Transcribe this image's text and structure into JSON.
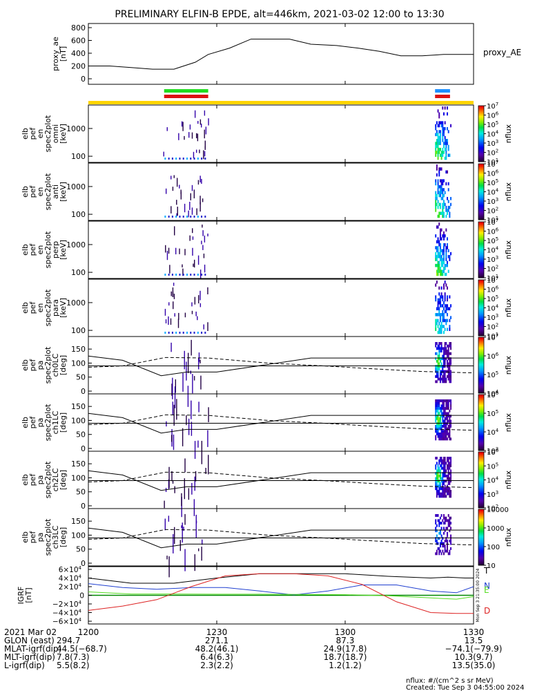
{
  "title": "PRELIMINARY ELFIN-B EPDE, alt=446km, 2021-03-02 12:00 to 13:30",
  "colors": {
    "status_yellow": "#ffd400",
    "green": "#22dd22",
    "red": "#dd1111",
    "blue": "#1e90ff",
    "igrf_T": "#000000",
    "igrf_N": "#1f3fd0",
    "igrf_E": "#55dd22",
    "igrf_D": "#dd2222"
  },
  "chart_data": [
    {
      "type": "line",
      "name": "proxy_ae",
      "ylabel_lines": [
        "proxy_ae",
        "[nT]"
      ],
      "legend": "proxy_AE",
      "ylim": [
        0,
        800
      ],
      "yticks": [
        "0",
        "200",
        "400",
        "600",
        "800"
      ],
      "ytick_values": [
        0,
        200,
        400,
        600,
        800
      ],
      "x": [
        0,
        5,
        10,
        15,
        20,
        25,
        28,
        33,
        38,
        43,
        47,
        52,
        58,
        63,
        68,
        73,
        78,
        83,
        90
      ],
      "values": [
        200,
        200,
        175,
        150,
        150,
        260,
        380,
        480,
        620,
        620,
        620,
        540,
        520,
        480,
        430,
        360,
        360,
        380,
        380
      ]
    },
    {
      "type": "status_bars",
      "bars": [
        {
          "color": "green",
          "x0": 17.7,
          "x1": 28.0,
          "row": 0
        },
        {
          "color": "red",
          "x0": 17.7,
          "x1": 28.0,
          "row": 1
        },
        {
          "color": "blue",
          "x0": 81.0,
          "x1": 84.5,
          "row": 0
        },
        {
          "color": "red",
          "x0": 81.0,
          "x1": 84.5,
          "row": 1
        }
      ]
    },
    {
      "type": "heatmap",
      "ylabel_lines": [
        "elb",
        "pef",
        "en",
        "spec2plot",
        "omni",
        "[keV]"
      ],
      "yticks": [
        "100",
        "1000"
      ],
      "yscale": "log",
      "ylim": [
        60,
        7000
      ],
      "colorbar": {
        "label": "nflux",
        "ticks": [
          "10",
          "10",
          "10",
          "10",
          "10",
          "10",
          "10"
        ],
        "exponents": [
          "1",
          "2",
          "3",
          "4",
          "5",
          "6",
          "7"
        ]
      }
    },
    {
      "type": "heatmap",
      "ylabel_lines": [
        "elb",
        "pef",
        "en",
        "spec2plot",
        "anti",
        "[keV]"
      ],
      "yticks": [
        "100",
        "1000"
      ],
      "yscale": "log",
      "ylim": [
        60,
        7000
      ],
      "colorbar": {
        "label": "nflux",
        "ticks": [
          "10",
          "10",
          "10",
          "10",
          "10",
          "10",
          "10"
        ],
        "exponents": [
          "1",
          "2",
          "3",
          "4",
          "5",
          "6",
          "7"
        ]
      }
    },
    {
      "type": "heatmap",
      "ylabel_lines": [
        "elb",
        "pef",
        "en",
        "spec2plot",
        "perp",
        "[keV]"
      ],
      "yticks": [
        "100",
        "1000"
      ],
      "yscale": "log",
      "ylim": [
        60,
        7000
      ],
      "colorbar": {
        "label": "nflux",
        "ticks": [
          "10",
          "10",
          "10",
          "10",
          "10",
          "10",
          "10"
        ],
        "exponents": [
          "1",
          "2",
          "3",
          "4",
          "5",
          "6",
          "7"
        ]
      }
    },
    {
      "type": "heatmap",
      "ylabel_lines": [
        "elb",
        "pef",
        "en",
        "spec2plot",
        "para",
        "[keV]"
      ],
      "yticks": [
        "100",
        "1000"
      ],
      "yscale": "log",
      "ylim": [
        60,
        7000
      ],
      "colorbar": {
        "label": "nflux",
        "ticks": [
          "10",
          "10",
          "10",
          "10",
          "10",
          "10",
          "10"
        ],
        "exponents": [
          "1",
          "2",
          "3",
          "4",
          "5",
          "6",
          "7"
        ]
      }
    },
    {
      "type": "heatmap",
      "ylabel_lines": [
        "elb",
        "pef",
        "pa",
        "spec2plot",
        "ch0LC",
        "[deg]"
      ],
      "yticks": [
        "0",
        "50",
        "100",
        "150"
      ],
      "ylim": [
        0,
        180
      ],
      "colorbar": {
        "label": "nflux",
        "ticks": [
          "10",
          "10",
          "10",
          "10"
        ],
        "exponents": [
          "4",
          "5",
          "6",
          "7"
        ]
      }
    },
    {
      "type": "heatmap",
      "ylabel_lines": [
        "elb",
        "pef",
        "pa",
        "spec2plot",
        "ch1LC",
        "[deg]"
      ],
      "yticks": [
        "0",
        "50",
        "100",
        "150"
      ],
      "ylim": [
        0,
        180
      ],
      "colorbar": {
        "label": "nflux",
        "ticks": [
          "10",
          "10",
          "10",
          "10"
        ],
        "exponents": [
          "3",
          "4",
          "5",
          "6"
        ]
      }
    },
    {
      "type": "heatmap",
      "ylabel_lines": [
        "elb",
        "pef",
        "pa",
        "spec2plot",
        "ch2LC",
        "[deg]"
      ],
      "yticks": [
        "0",
        "50",
        "100",
        "150"
      ],
      "ylim": [
        0,
        180
      ],
      "colorbar": {
        "label": "nflux",
        "ticks": [
          "10",
          "10",
          "10",
          "10",
          "10"
        ],
        "exponents": [
          "2",
          "3",
          "4",
          "5",
          "6"
        ]
      }
    },
    {
      "type": "heatmap",
      "ylabel_lines": [
        "elb",
        "pef",
        "pa",
        "spec2plot",
        "ch3LC",
        "[deg]"
      ],
      "yticks": [
        "0",
        "50",
        "100",
        "150"
      ],
      "ylim": [
        0,
        180
      ],
      "colorbar": {
        "label": "nflux",
        "ticks": [
          "10",
          "100",
          "1000",
          "10000"
        ]
      }
    },
    {
      "type": "line",
      "name": "igrf",
      "ylabel_lines": [
        "IGRF",
        "[nT]"
      ],
      "ylim": [
        -60000,
        60000
      ],
      "yticks": [
        "−6×10",
        "−4×10",
        "−2×10",
        "0",
        "2×10",
        "4×10",
        "6×10"
      ],
      "ytick_exp": "4",
      "series": [
        {
          "name": "T",
          "color": "igrf_T",
          "x": [
            0,
            10,
            20,
            30,
            40,
            50,
            60,
            70,
            80,
            84,
            88,
            90
          ],
          "values": [
            40000,
            28000,
            28000,
            40000,
            50000,
            50000,
            50000,
            44000,
            40000,
            42000,
            40000,
            40000
          ]
        },
        {
          "name": "N",
          "color": "igrf_N",
          "x": [
            0,
            8,
            16,
            24,
            32,
            40,
            48,
            56,
            64,
            72,
            80,
            86,
            90
          ],
          "values": [
            27000,
            18000,
            14000,
            18000,
            18000,
            10000,
            1000,
            10000,
            24000,
            24000,
            10000,
            6000,
            20000
          ]
        },
        {
          "name": "E",
          "color": "igrf_E",
          "x": [
            0,
            10,
            20,
            30,
            40,
            50,
            60,
            70,
            80,
            86,
            90
          ],
          "values": [
            8000,
            3000,
            3000,
            2500,
            2500,
            2000,
            1500,
            -1000,
            -6000,
            -9000,
            -3000
          ]
        },
        {
          "name": "D",
          "color": "igrf_D",
          "x": [
            0,
            8,
            16,
            24,
            32,
            40,
            48,
            56,
            64,
            72,
            80,
            86,
            90
          ],
          "values": [
            -35000,
            -25000,
            -10000,
            20000,
            45000,
            50000,
            50000,
            45000,
            25000,
            -15000,
            -40000,
            -42000,
            -42000
          ]
        }
      ]
    }
  ],
  "footer": {
    "labels": [
      "2021 Mar 02",
      "GLON (east)",
      "MLAT-igrf(dip)",
      "MLT-igrf(dip)",
      "L-igrf(dip)"
    ],
    "columns": [
      {
        "time": "1200",
        "values": [
          "294.7",
          "44.5(−68.7)",
          "7.8(7.3)",
          "5.5(8.2)"
        ]
      },
      {
        "time": "1230",
        "values": [
          "271.1",
          "48.2(46.1)",
          "6.4(6.3)",
          "2.3(2.2)"
        ]
      },
      {
        "time": "1300",
        "values": [
          "87.3",
          "24.9(17.8)",
          "18.7(18.7)",
          "1.2(1.2)"
        ]
      },
      {
        "time": "1330",
        "values": [
          "13.5",
          "−74.1(−79.9)",
          "10.3(9.7)",
          "13.5(35.0)"
        ]
      }
    ],
    "units_note": "nflux: #/(cm^2 s sr MeV)",
    "created": "Created: Tue Sep  3 04:55:00 2024",
    "side_stamp": "Mon Sep  3 21:35:00 2024"
  }
}
